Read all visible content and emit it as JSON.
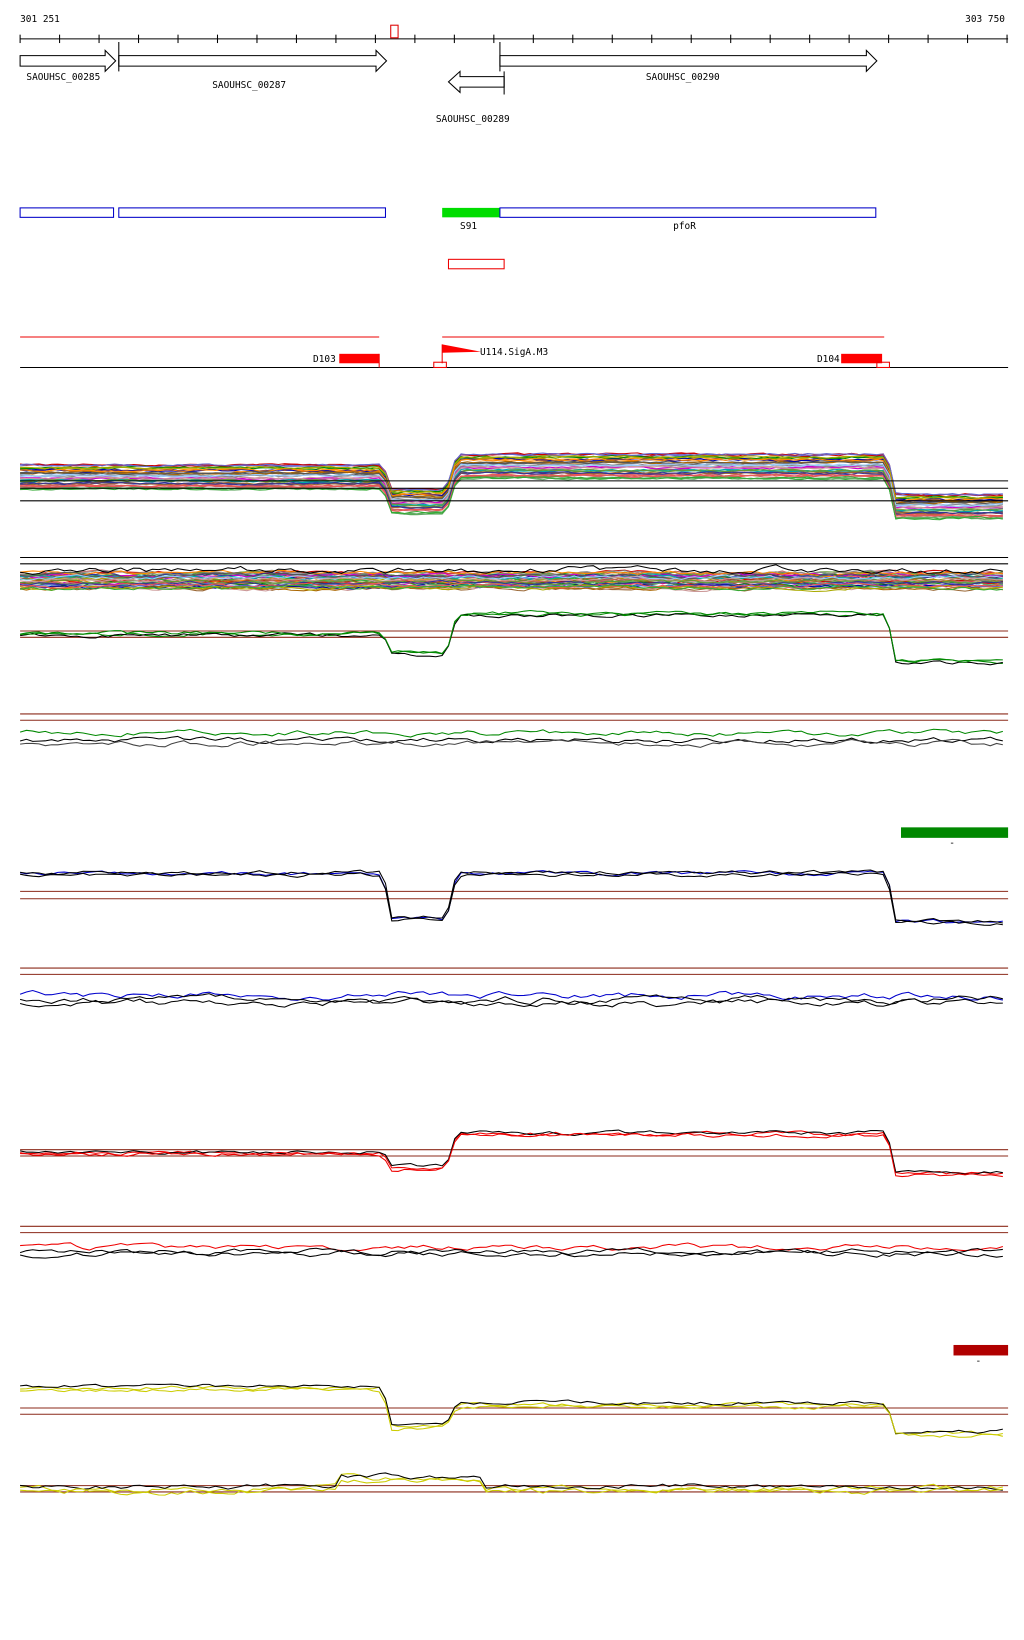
{
  "ruler": {
    "start": "301 251",
    "end": "303 750"
  },
  "genes": [
    {
      "label": "SAOUHSC_00285"
    },
    {
      "label": "SAOUHSC_00287"
    },
    {
      "label": "SAOUHSC_00289"
    },
    {
      "label": "SAOUHSC_00290"
    }
  ],
  "features": [
    {
      "label": "S91"
    },
    {
      "label": "pfoR"
    }
  ],
  "regulators": [
    {
      "label": "D103"
    },
    {
      "label": "U114.SigA.M3"
    },
    {
      "label": "D104"
    }
  ],
  "condition_markers": [
    {
      "label": "-"
    },
    {
      "label": "-"
    }
  ]
}
